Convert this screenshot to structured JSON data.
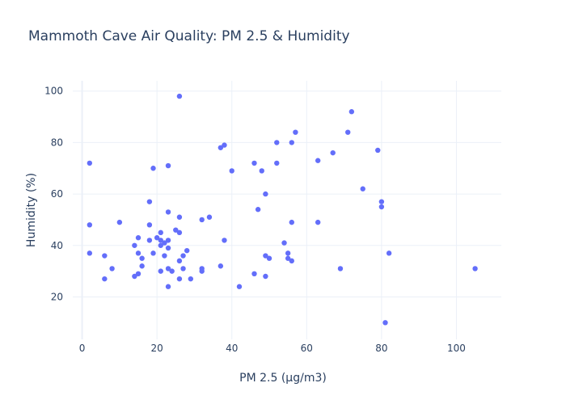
{
  "chart_data": {
    "type": "scatter",
    "title": "Mammoth Cave Air Quality: PM 2.5 & Humidity",
    "xlabel": "PM 2.5 (µg/m3)",
    "ylabel": "Humidity (%)",
    "xlim": [
      -2.5,
      112
    ],
    "ylim": [
      3.5,
      104
    ],
    "xticks": [
      0,
      20,
      40,
      60,
      80,
      100
    ],
    "yticks": [
      20,
      40,
      60,
      80,
      100
    ],
    "grid": true,
    "marker_color": "#636efa",
    "series": [
      {
        "points": [
          [
            2,
            72
          ],
          [
            2,
            48
          ],
          [
            2,
            37
          ],
          [
            6,
            36
          ],
          [
            6,
            27
          ],
          [
            8,
            31
          ],
          [
            10,
            49
          ],
          [
            14,
            40
          ],
          [
            14,
            28
          ],
          [
            15,
            43
          ],
          [
            15,
            37
          ],
          [
            15,
            29
          ],
          [
            16,
            35
          ],
          [
            16,
            32
          ],
          [
            18,
            57
          ],
          [
            18,
            48
          ],
          [
            18,
            42
          ],
          [
            19,
            70
          ],
          [
            19,
            37
          ],
          [
            20,
            43
          ],
          [
            21,
            45
          ],
          [
            21,
            42
          ],
          [
            21,
            40
          ],
          [
            21,
            30
          ],
          [
            22,
            41
          ],
          [
            22,
            36
          ],
          [
            23,
            71
          ],
          [
            23,
            53
          ],
          [
            23,
            42
          ],
          [
            23,
            39
          ],
          [
            23,
            31
          ],
          [
            23,
            24
          ],
          [
            24,
            30
          ],
          [
            25,
            46
          ],
          [
            26,
            98
          ],
          [
            26,
            51
          ],
          [
            26,
            45
          ],
          [
            26,
            34
          ],
          [
            26,
            27
          ],
          [
            27,
            36
          ],
          [
            27,
            31
          ],
          [
            28,
            38
          ],
          [
            29,
            27
          ],
          [
            32,
            50
          ],
          [
            32,
            31
          ],
          [
            32,
            30
          ],
          [
            34,
            51
          ],
          [
            37,
            78
          ],
          [
            37,
            32
          ],
          [
            38,
            79
          ],
          [
            38,
            42
          ],
          [
            40,
            69
          ],
          [
            42,
            24
          ],
          [
            46,
            72
          ],
          [
            46,
            29
          ],
          [
            47,
            54
          ],
          [
            48,
            69
          ],
          [
            49,
            60
          ],
          [
            49,
            36
          ],
          [
            49,
            28
          ],
          [
            50,
            35
          ],
          [
            52,
            80
          ],
          [
            52,
            72
          ],
          [
            54,
            41
          ],
          [
            55,
            37
          ],
          [
            55,
            35
          ],
          [
            56,
            80
          ],
          [
            56,
            49
          ],
          [
            56,
            34
          ],
          [
            57,
            84
          ],
          [
            63,
            73
          ],
          [
            63,
            49
          ],
          [
            67,
            76
          ],
          [
            69,
            31
          ],
          [
            71,
            84
          ],
          [
            72,
            92
          ],
          [
            75,
            62
          ],
          [
            79,
            77
          ],
          [
            80,
            57
          ],
          [
            80,
            55
          ],
          [
            81,
            10
          ],
          [
            82,
            37
          ],
          [
            105,
            31
          ]
        ]
      }
    ]
  }
}
